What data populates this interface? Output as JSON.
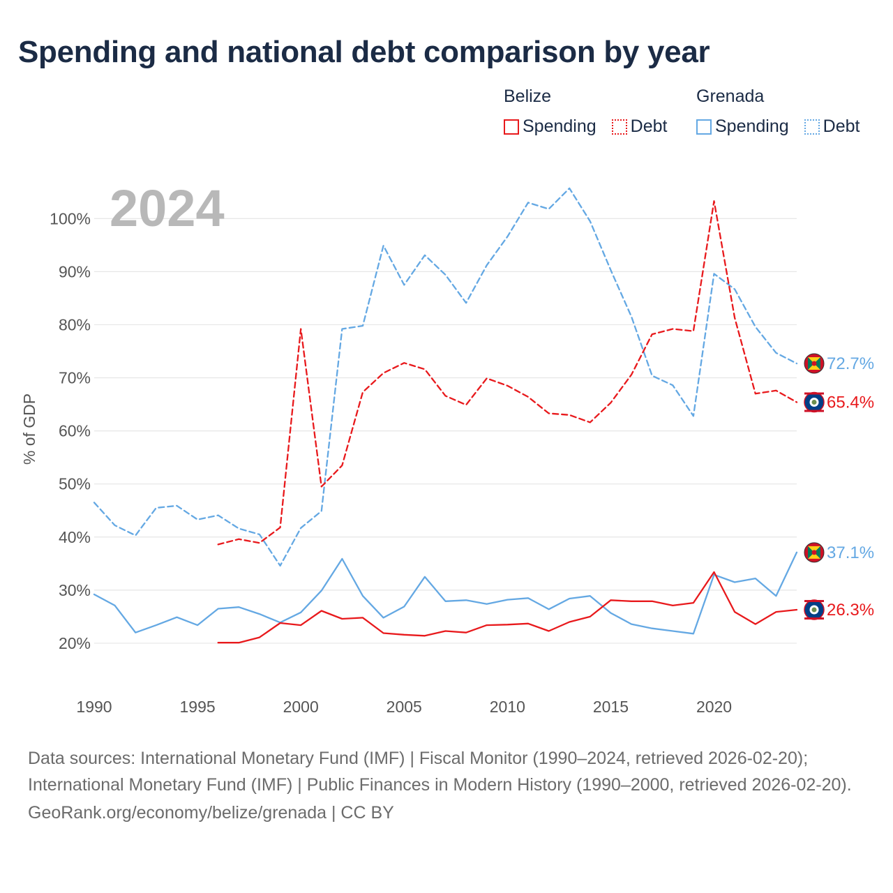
{
  "title": "Spending and national debt comparison by year",
  "legend": {
    "groups": [
      {
        "country": "Belize",
        "color": "#e8191c",
        "items": [
          {
            "label": "Spending",
            "style": "solid"
          },
          {
            "label": "Debt",
            "style": "dotted"
          }
        ]
      },
      {
        "country": "Grenada",
        "color": "#64a8e3",
        "items": [
          {
            "label": "Spending",
            "style": "solid"
          },
          {
            "label": "Debt",
            "style": "dotted"
          }
        ]
      }
    ]
  },
  "footer": {
    "sources": "Data sources: International Monetary Fund (IMF) | Fiscal Monitor (1990–2024, retrieved 2026-02-20); International Monetary Fund (IMF) | Public Finances in Modern History (1990–2000, retrieved 2026-02-20).",
    "credit": "GeoRank.org/economy/belize/grenada | CC BY"
  },
  "chart_data": {
    "type": "line",
    "title": "Spending and national debt comparison by year",
    "year_label": "2024",
    "ylabel": "% of GDP",
    "xlabel": "",
    "xlim": [
      1990,
      2024
    ],
    "ylim": [
      15,
      107
    ],
    "x_ticks": [
      1990,
      1995,
      2000,
      2005,
      2010,
      2015,
      2020
    ],
    "y_ticks": [
      20,
      30,
      40,
      50,
      60,
      70,
      80,
      90,
      100
    ],
    "y_tick_suffix": "%",
    "grid": true,
    "series": [
      {
        "name": "Grenada Debt",
        "country": "Grenada",
        "metric": "Debt",
        "color": "#64a8e3",
        "dash": "dashed",
        "x": [
          1990,
          1991,
          1992,
          1993,
          1994,
          1995,
          1996,
          1997,
          1998,
          1999,
          2000,
          2001,
          2002,
          2003,
          2004,
          2005,
          2006,
          2007,
          2008,
          2009,
          2010,
          2011,
          2012,
          2013,
          2014,
          2015,
          2016,
          2017,
          2018,
          2019,
          2020,
          2021,
          2022,
          2023,
          2024
        ],
        "values": [
          46.5,
          42.2,
          40.3,
          45.5,
          45.9,
          43.3,
          44.1,
          41.6,
          40.5,
          34.6,
          41.7,
          44.9,
          79.2,
          79.8,
          94.9,
          87.5,
          93.1,
          89.4,
          84.1,
          91.2,
          96.6,
          103.0,
          101.8,
          105.7,
          99.5,
          90.3,
          81.5,
          70.4,
          68.6,
          62.8,
          89.6,
          86.7,
          79.6,
          74.7,
          72.7
        ],
        "end_label": "72.7%"
      },
      {
        "name": "Belize Debt",
        "country": "Belize",
        "metric": "Debt",
        "color": "#e8191c",
        "dash": "dashed",
        "x": [
          1996,
          1997,
          1998,
          1999,
          2000,
          2001,
          2002,
          2003,
          2004,
          2005,
          2006,
          2007,
          2008,
          2009,
          2010,
          2011,
          2012,
          2013,
          2014,
          2015,
          2016,
          2017,
          2018,
          2019,
          2020,
          2021,
          2022,
          2023,
          2024
        ],
        "values": [
          38.6,
          39.6,
          38.9,
          41.8,
          79.2,
          49.5,
          53.5,
          67.3,
          70.9,
          72.8,
          71.6,
          66.6,
          64.9,
          69.9,
          68.5,
          66.4,
          63.3,
          63.0,
          61.6,
          65.3,
          70.6,
          78.2,
          79.2,
          78.8,
          103.3,
          81.3,
          67.0,
          67.6,
          65.4
        ],
        "end_label": "65.4%"
      },
      {
        "name": "Grenada Spending",
        "country": "Grenada",
        "metric": "Spending",
        "color": "#64a8e3",
        "dash": "solid",
        "x": [
          1990,
          1991,
          1992,
          1993,
          1994,
          1995,
          1996,
          1997,
          1998,
          1999,
          2000,
          2001,
          2002,
          2003,
          2004,
          2005,
          2006,
          2007,
          2008,
          2009,
          2010,
          2011,
          2012,
          2013,
          2014,
          2015,
          2016,
          2017,
          2018,
          2019,
          2020,
          2021,
          2022,
          2023,
          2024
        ],
        "values": [
          29.2,
          27.1,
          22.0,
          23.4,
          24.9,
          23.4,
          26.5,
          26.8,
          25.5,
          23.9,
          25.8,
          29.9,
          35.9,
          28.9,
          24.8,
          26.9,
          32.5,
          27.9,
          28.1,
          27.4,
          28.2,
          28.5,
          26.4,
          28.4,
          28.9,
          25.7,
          23.6,
          22.8,
          22.3,
          21.8,
          32.9,
          31.5,
          32.2,
          28.9,
          37.1
        ],
        "end_label": "37.1%"
      },
      {
        "name": "Belize Spending",
        "country": "Belize",
        "metric": "Spending",
        "color": "#e8191c",
        "dash": "solid",
        "x": [
          1996,
          1997,
          1998,
          1999,
          2000,
          2001,
          2002,
          2003,
          2004,
          2005,
          2006,
          2007,
          2008,
          2009,
          2010,
          2011,
          2012,
          2013,
          2014,
          2015,
          2016,
          2017,
          2018,
          2019,
          2020,
          2021,
          2022,
          2023,
          2024
        ],
        "values": [
          20.1,
          20.1,
          21.1,
          23.8,
          23.4,
          26.1,
          24.6,
          24.8,
          21.9,
          21.6,
          21.4,
          22.3,
          22.0,
          23.4,
          23.5,
          23.7,
          22.3,
          24.0,
          25.0,
          28.1,
          27.9,
          27.9,
          27.1,
          27.6,
          33.4,
          25.9,
          23.6,
          25.9,
          26.3
        ],
        "end_label": "26.3%"
      }
    ]
  }
}
